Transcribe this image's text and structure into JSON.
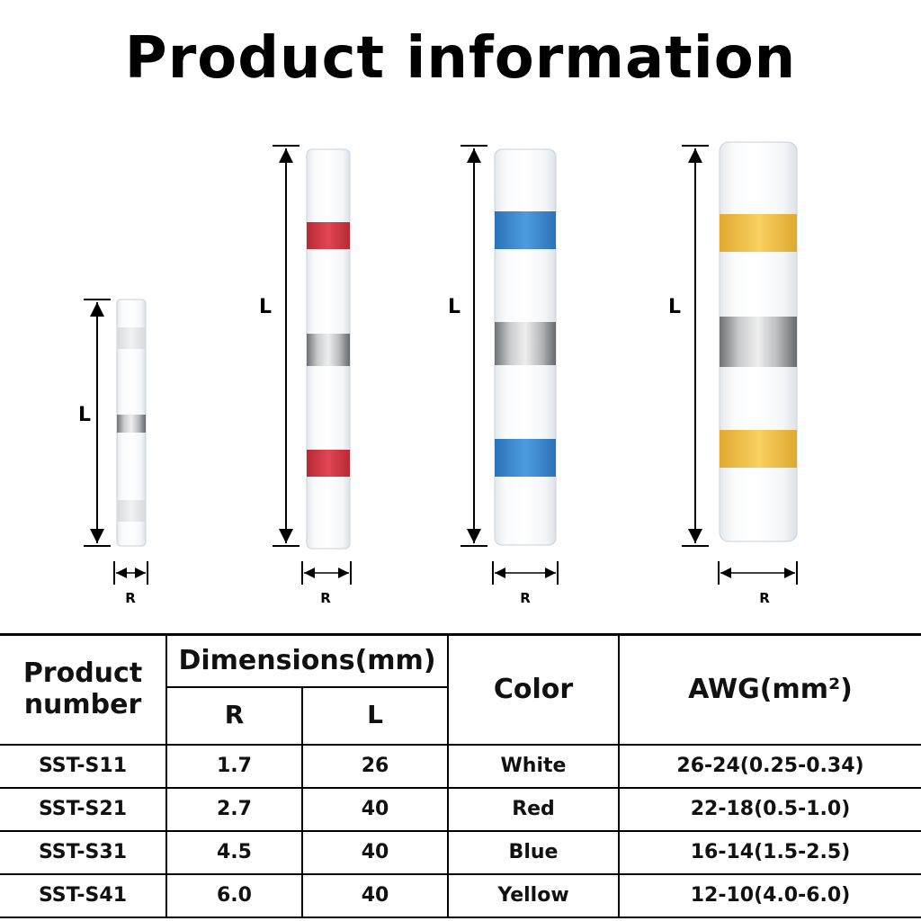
{
  "title": "Product information",
  "diagram": {
    "length_label": "L",
    "width_label": "R",
    "connectors": [
      {
        "band_color": "#eeeeee"
      },
      {
        "band_color": "#d93a46"
      },
      {
        "band_color": "#3e8fd9"
      },
      {
        "band_color": "#f4c542"
      }
    ]
  },
  "table": {
    "header": {
      "product_number": "Product number",
      "dimensions": "Dimensions(mm)",
      "r": "R",
      "l": "L",
      "color": "Color",
      "awg": "AWG(mm²)"
    },
    "rows": [
      {
        "product": "SST-S11",
        "r": "1.7",
        "l": "26",
        "color": "White",
        "awg": "26-24(0.25-0.34)"
      },
      {
        "product": "SST-S21",
        "r": "2.7",
        "l": "40",
        "color": "Red",
        "awg": "22-18(0.5-1.0)"
      },
      {
        "product": "SST-S31",
        "r": "4.5",
        "l": "40",
        "color": "Blue",
        "awg": "16-14(1.5-2.5)"
      },
      {
        "product": "SST-S41",
        "r": "6.0",
        "l": "40",
        "color": "Yellow",
        "awg": "12-10(4.0-6.0)"
      }
    ]
  }
}
